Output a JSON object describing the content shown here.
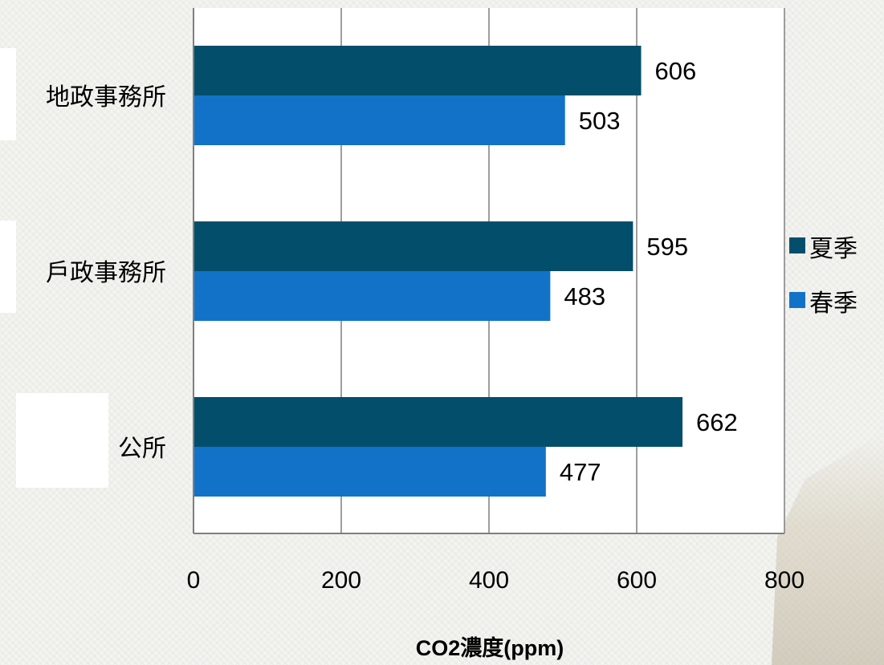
{
  "chart_data": {
    "type": "bar",
    "orientation": "horizontal",
    "categories": [
      "地政事務所",
      "戶政事務所",
      "公所"
    ],
    "series": [
      {
        "name": "夏季",
        "values": [
          606,
          595,
          662
        ],
        "color": "#034e6b"
      },
      {
        "name": "春季",
        "values": [
          503,
          483,
          477
        ],
        "color": "#1272c7"
      }
    ],
    "xlabel": "CO2濃度(ppm)",
    "ylabel": "",
    "xlim": [
      0,
      800
    ],
    "xticks": [
      "0",
      "200",
      "400",
      "600",
      "800"
    ],
    "grid": true,
    "legend_position": "right",
    "data_labels": true
  }
}
